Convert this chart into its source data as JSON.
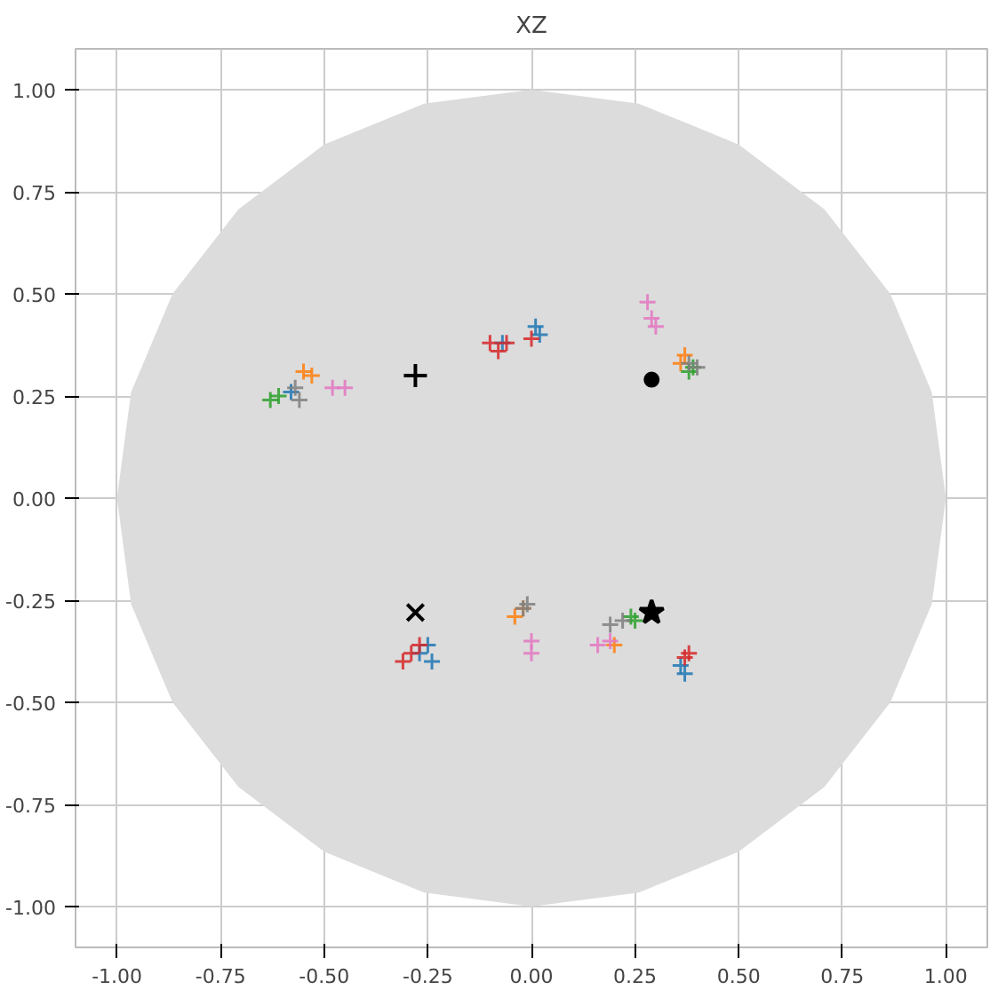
{
  "chart_data": {
    "type": "scatter",
    "title": "XZ",
    "grid": true,
    "marker": "cross",
    "xlim": [
      -1.1,
      1.1
    ],
    "ylim": [
      -1.1,
      1.1
    ],
    "xticks": [
      {
        "value": -1,
        "label": "-1.00"
      },
      {
        "value": -0.75,
        "label": "-0.75"
      },
      {
        "value": -0.5,
        "label": "-0.50"
      },
      {
        "value": -0.25,
        "label": "-0.25"
      },
      {
        "value": 0,
        "label": "0.00"
      },
      {
        "value": 0.25,
        "label": "0.25"
      },
      {
        "value": 0.5,
        "label": "0.50"
      },
      {
        "value": 0.75,
        "label": "0.75"
      },
      {
        "value": 1,
        "label": "1.00"
      }
    ],
    "yticks": [
      {
        "value": -1,
        "label": "-1.00"
      },
      {
        "value": -0.75,
        "label": "-0.75"
      },
      {
        "value": -0.5,
        "label": "-0.50"
      },
      {
        "value": -0.25,
        "label": "-0.25"
      },
      {
        "value": 0,
        "label": "0.00"
      },
      {
        "value": 0.25,
        "label": "0.25"
      },
      {
        "value": 0.5,
        "label": "0.50"
      },
      {
        "value": 0.75,
        "label": "0.75"
      },
      {
        "value": 1,
        "label": "1.00"
      }
    ],
    "series": [
      {
        "type": "area",
        "marker": "none",
        "color": "#dcdcdc",
        "x": [
          1,
          0.966,
          0.866,
          0.707,
          0.5,
          0.259,
          0,
          -0.259,
          -0.5,
          -0.707,
          -0.866,
          -0.966,
          -1,
          -0.966,
          -0.866,
          -0.707,
          -0.5,
          -0.259,
          0,
          0.259,
          0.5,
          0.707,
          0.866,
          0.966
        ],
        "values": [
          0,
          0.259,
          0.5,
          0.707,
          0.866,
          0.966,
          1,
          0.966,
          0.866,
          0.707,
          0.5,
          0.259,
          0,
          -0.259,
          -0.5,
          -0.707,
          -0.866,
          -0.966,
          -1,
          -0.966,
          -0.866,
          -0.707,
          -0.5,
          -0.259
        ]
      },
      {
        "color": "#1f77b4",
        "x": [
          0.01,
          -0.07,
          0.02,
          -0.25,
          -0.27,
          -0.24,
          0.37,
          0.36,
          -0.58
        ],
        "values": [
          0.42,
          0.38,
          0.4,
          -0.36,
          -0.38,
          -0.4,
          -0.43,
          -0.41,
          0.26
        ]
      },
      {
        "color": "#ff7f0e",
        "x": [
          -0.55,
          -0.53,
          0.37,
          0.36,
          -0.04,
          -0.02,
          0.2
        ],
        "values": [
          0.31,
          0.3,
          0.35,
          0.33,
          -0.29,
          -0.27,
          -0.36
        ]
      },
      {
        "color": "#2ca02c",
        "x": [
          -0.63,
          -0.61,
          0.39,
          0.38,
          0.24,
          0.25
        ],
        "values": [
          0.24,
          0.25,
          0.32,
          0.31,
          -0.29,
          -0.3
        ]
      },
      {
        "color": "#d62728",
        "x": [
          -0.1,
          -0.06,
          0.0,
          -0.08,
          -0.29,
          -0.27,
          -0.31,
          0.37,
          0.38
        ],
        "values": [
          0.38,
          0.38,
          0.39,
          0.36,
          -0.38,
          -0.36,
          -0.4,
          -0.39,
          -0.38
        ]
      },
      {
        "color": "#e377c2",
        "x": [
          0.28,
          0.29,
          0.3,
          -0.48,
          -0.45,
          0.0,
          0.0,
          0.16,
          0.19
        ],
        "values": [
          0.48,
          0.44,
          0.42,
          0.27,
          0.27,
          -0.35,
          -0.38,
          -0.36,
          -0.35
        ]
      },
      {
        "color": "#7f7f7f",
        "x": [
          -0.57,
          -0.56,
          0.38,
          0.4,
          -0.02,
          -0.01,
          0.19,
          0.22
        ],
        "values": [
          0.27,
          0.24,
          0.33,
          0.32,
          -0.27,
          -0.26,
          -0.31,
          -0.3
        ]
      },
      {
        "color": "#000000",
        "marker": "cross",
        "x": [
          -0.28
        ],
        "values": [
          0.3
        ]
      },
      {
        "color": "#000000",
        "marker": "circle",
        "x": [
          0.29
        ],
        "values": [
          0.29
        ]
      },
      {
        "color": "#000000",
        "marker": "x",
        "x": [
          -0.28
        ],
        "values": [
          -0.28
        ]
      },
      {
        "color": "#000000",
        "marker": "star",
        "x": [
          0.29
        ],
        "values": [
          -0.28
        ]
      }
    ]
  }
}
